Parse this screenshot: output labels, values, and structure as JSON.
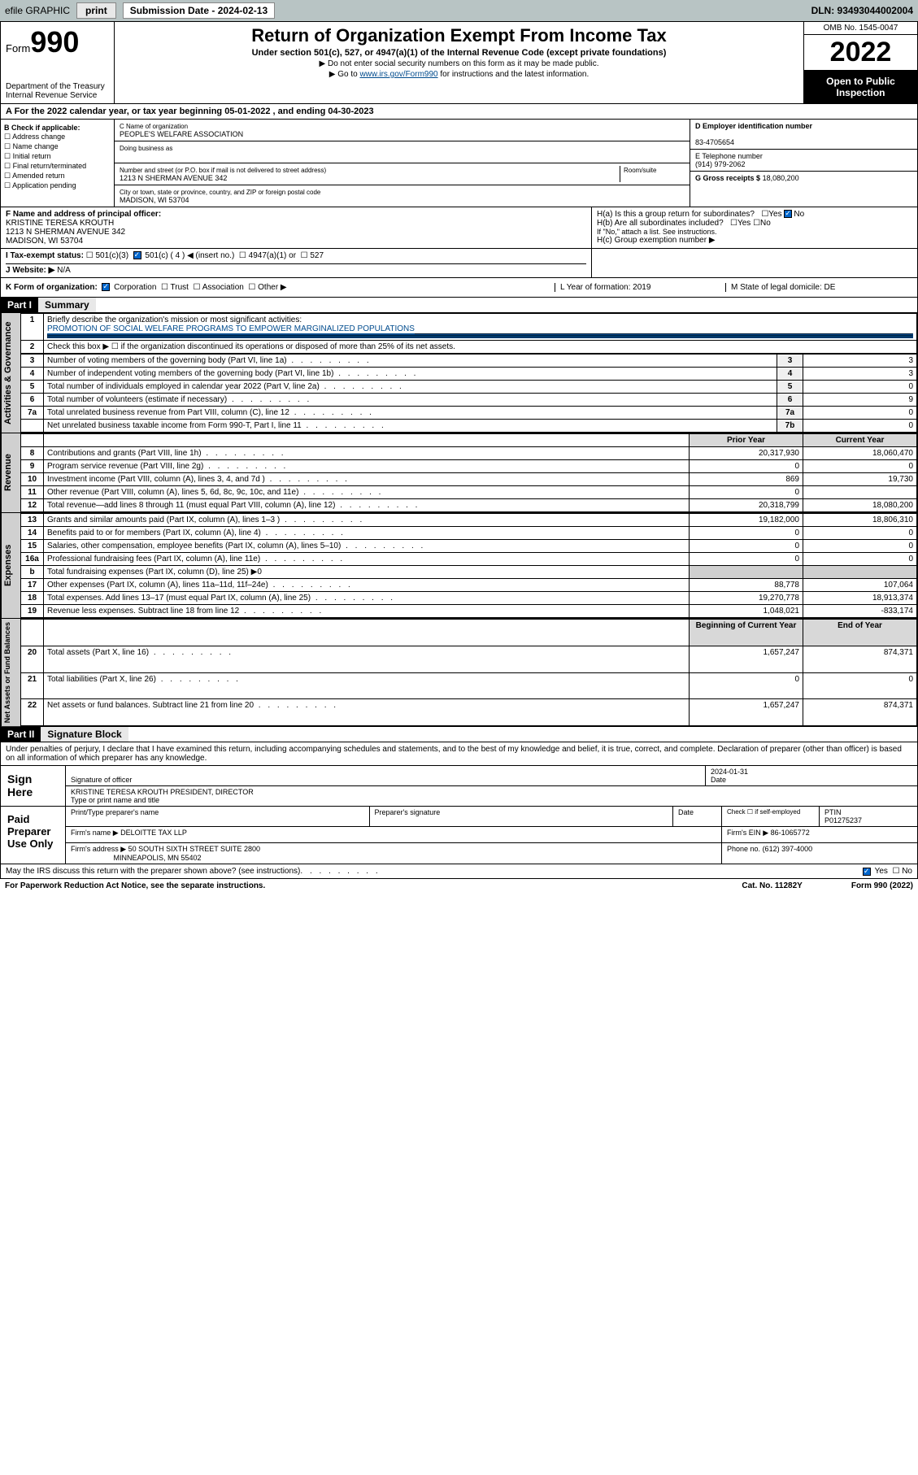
{
  "topbar": {
    "efile": "efile GRAPHIC",
    "print": "print",
    "subdate_label": "Submission Date - ",
    "subdate": "2024-02-13",
    "dln": "DLN: 93493044002004"
  },
  "header": {
    "form_prefix": "Form",
    "form_num": "990",
    "dept": "Department of the Treasury",
    "irs": "Internal Revenue Service",
    "title": "Return of Organization Exempt From Income Tax",
    "subtitle": "Under section 501(c), 527, or 4947(a)(1) of the Internal Revenue Code (except private foundations)",
    "note1": "▶ Do not enter social security numbers on this form as it may be made public.",
    "note2_pre": "▶ Go to ",
    "note2_link": "www.irs.gov/Form990",
    "note2_post": " for instructions and the latest information.",
    "omb": "OMB No. 1545-0047",
    "year": "2022",
    "open": "Open to Public Inspection"
  },
  "lineA": "A For the 2022 calendar year, or tax year beginning 05-01-2022   , and ending 04-30-2023",
  "colB": {
    "label": "B Check if applicable:",
    "items": [
      "Address change",
      "Name change",
      "Initial return",
      "Final return/terminated",
      "Amended return",
      "Application pending"
    ]
  },
  "colC": {
    "name_label": "C Name of organization",
    "name": "PEOPLE'S WELFARE ASSOCIATION",
    "dba": "Doing business as",
    "addr_label": "Number and street (or P.O. box if mail is not delivered to street address)",
    "room": "Room/suite",
    "addr": "1213 N SHERMAN AVENUE 342",
    "city_label": "City or town, state or province, country, and ZIP or foreign postal code",
    "city": "MADISON, WI  53704"
  },
  "colD": {
    "ein_label": "D Employer identification number",
    "ein": "83-4705654",
    "phone_label": "E Telephone number",
    "phone": "(914) 979-2062",
    "gross_label": "G Gross receipts $",
    "gross": "18,080,200"
  },
  "rowF": {
    "label": "F  Name and address of principal officer:",
    "name": "KRISTINE TERESA KROUTH",
    "addr": "1213 N SHERMAN AVENUE 342",
    "city": "MADISON, WI  53704"
  },
  "rowH": {
    "a": "H(a)  Is this a group return for subordinates?",
    "yes": "Yes",
    "no": "No",
    "b": "H(b)  Are all subordinates included?",
    "b_note": "If \"No,\" attach a list. See instructions.",
    "c": "H(c)  Group exemption number ▶"
  },
  "rowI": {
    "label": "I   Tax-exempt status:",
    "opts": [
      "501(c)(3)",
      "501(c) ( 4 ) ◀ (insert no.)",
      "4947(a)(1) or",
      "527"
    ]
  },
  "rowJ": {
    "label": "J   Website: ▶",
    "val": "N/A"
  },
  "rowK": {
    "label": "K Form of organization:",
    "opts": [
      "Corporation",
      "Trust",
      "Association",
      "Other ▶"
    ],
    "L": "L Year of formation: 2019",
    "M": "M State of legal domicile: DE"
  },
  "part1": {
    "hdr": "Part I",
    "title": "Summary",
    "q1": "Briefly describe the organization's mission or most significant activities:",
    "q1_val": "PROMOTION OF SOCIAL WELFARE PROGRAMS TO EMPOWER MARGINALIZED POPULATIONS",
    "q2": "Check this box ▶ ☐  if the organization discontinued its operations or disposed of more than 25% of its net assets.",
    "rows_gov": [
      {
        "n": "3",
        "t": "Number of voting members of the governing body (Part VI, line 1a)",
        "r": "3",
        "v": "3"
      },
      {
        "n": "4",
        "t": "Number of independent voting members of the governing body (Part VI, line 1b)",
        "r": "4",
        "v": "3"
      },
      {
        "n": "5",
        "t": "Total number of individuals employed in calendar year 2022 (Part V, line 2a)",
        "r": "5",
        "v": "0"
      },
      {
        "n": "6",
        "t": "Total number of volunteers (estimate if necessary)",
        "r": "6",
        "v": "9"
      },
      {
        "n": "7a",
        "t": "Total unrelated business revenue from Part VIII, column (C), line 12",
        "r": "7a",
        "v": "0"
      },
      {
        "n": "",
        "t": "Net unrelated business taxable income from Form 990-T, Part I, line 11",
        "r": "7b",
        "v": "0"
      }
    ],
    "col_prior": "Prior Year",
    "col_curr": "Current Year",
    "rows_rev": [
      {
        "n": "8",
        "t": "Contributions and grants (Part VIII, line 1h)",
        "p": "20,317,930",
        "c": "18,060,470"
      },
      {
        "n": "9",
        "t": "Program service revenue (Part VIII, line 2g)",
        "p": "0",
        "c": "0"
      },
      {
        "n": "10",
        "t": "Investment income (Part VIII, column (A), lines 3, 4, and 7d )",
        "p": "869",
        "c": "19,730"
      },
      {
        "n": "11",
        "t": "Other revenue (Part VIII, column (A), lines 5, 6d, 8c, 9c, 10c, and 11e)",
        "p": "0",
        "c": ""
      },
      {
        "n": "12",
        "t": "Total revenue—add lines 8 through 11 (must equal Part VIII, column (A), line 12)",
        "p": "20,318,799",
        "c": "18,080,200"
      }
    ],
    "rows_exp": [
      {
        "n": "13",
        "t": "Grants and similar amounts paid (Part IX, column (A), lines 1–3 )",
        "p": "19,182,000",
        "c": "18,806,310"
      },
      {
        "n": "14",
        "t": "Benefits paid to or for members (Part IX, column (A), line 4)",
        "p": "0",
        "c": "0"
      },
      {
        "n": "15",
        "t": "Salaries, other compensation, employee benefits (Part IX, column (A), lines 5–10)",
        "p": "0",
        "c": "0"
      },
      {
        "n": "16a",
        "t": "Professional fundraising fees (Part IX, column (A), line 11e)",
        "p": "0",
        "c": "0"
      },
      {
        "n": "b",
        "t": "Total fundraising expenses (Part IX, column (D), line 25) ▶0",
        "p": "",
        "c": "",
        "blank": true
      },
      {
        "n": "17",
        "t": "Other expenses (Part IX, column (A), lines 11a–11d, 11f–24e)",
        "p": "88,778",
        "c": "107,064"
      },
      {
        "n": "18",
        "t": "Total expenses. Add lines 13–17 (must equal Part IX, column (A), line 25)",
        "p": "19,270,778",
        "c": "18,913,374"
      },
      {
        "n": "19",
        "t": "Revenue less expenses. Subtract line 18 from line 12",
        "p": "1,048,021",
        "c": "-833,174"
      }
    ],
    "col_beg": "Beginning of Current Year",
    "col_end": "End of Year",
    "rows_net": [
      {
        "n": "20",
        "t": "Total assets (Part X, line 16)",
        "p": "1,657,247",
        "c": "874,371"
      },
      {
        "n": "21",
        "t": "Total liabilities (Part X, line 26)",
        "p": "0",
        "c": "0"
      },
      {
        "n": "22",
        "t": "Net assets or fund balances. Subtract line 21 from line 20",
        "p": "1,657,247",
        "c": "874,371"
      }
    ],
    "side_gov": "Activities & Governance",
    "side_rev": "Revenue",
    "side_exp": "Expenses",
    "side_net": "Net Assets or Fund Balances"
  },
  "part2": {
    "hdr": "Part II",
    "title": "Signature Block",
    "decl": "Under penalties of perjury, I declare that I have examined this return, including accompanying schedules and statements, and to the best of my knowledge and belief, it is true, correct, and complete. Declaration of preparer (other than officer) is based on all information of which preparer has any knowledge.",
    "sign_here": "Sign Here",
    "sig_officer": "Signature of officer",
    "date": "Date",
    "date_val": "2024-01-31",
    "officer": "KRISTINE TERESA KROUTH  PRESIDENT, DIRECTOR",
    "officer_lbl": "Type or print name and title",
    "paid": "Paid Preparer Use Only",
    "prep_name_lbl": "Print/Type preparer's name",
    "prep_sig_lbl": "Preparer's signature",
    "check_lbl": "Check ☐ if self-employed",
    "ptin_lbl": "PTIN",
    "ptin": "P01275237",
    "firm_lbl": "Firm's name   ▶",
    "firm": "DELOITTE TAX LLP",
    "firm_ein_lbl": "Firm's EIN ▶",
    "firm_ein": "86-1065772",
    "firm_addr_lbl": "Firm's address ▶",
    "firm_addr": "50 SOUTH SIXTH STREET SUITE 2800",
    "firm_city": "MINNEAPOLIS, MN  55402",
    "firm_phone_lbl": "Phone no.",
    "firm_phone": "(612) 397-4000",
    "discuss": "May the IRS discuss this return with the preparer shown above? (see instructions)",
    "yes": "Yes",
    "no": "No"
  },
  "footer": {
    "left": "For Paperwork Reduction Act Notice, see the separate instructions.",
    "mid": "Cat. No. 11282Y",
    "right": "Form 990 (2022)"
  }
}
